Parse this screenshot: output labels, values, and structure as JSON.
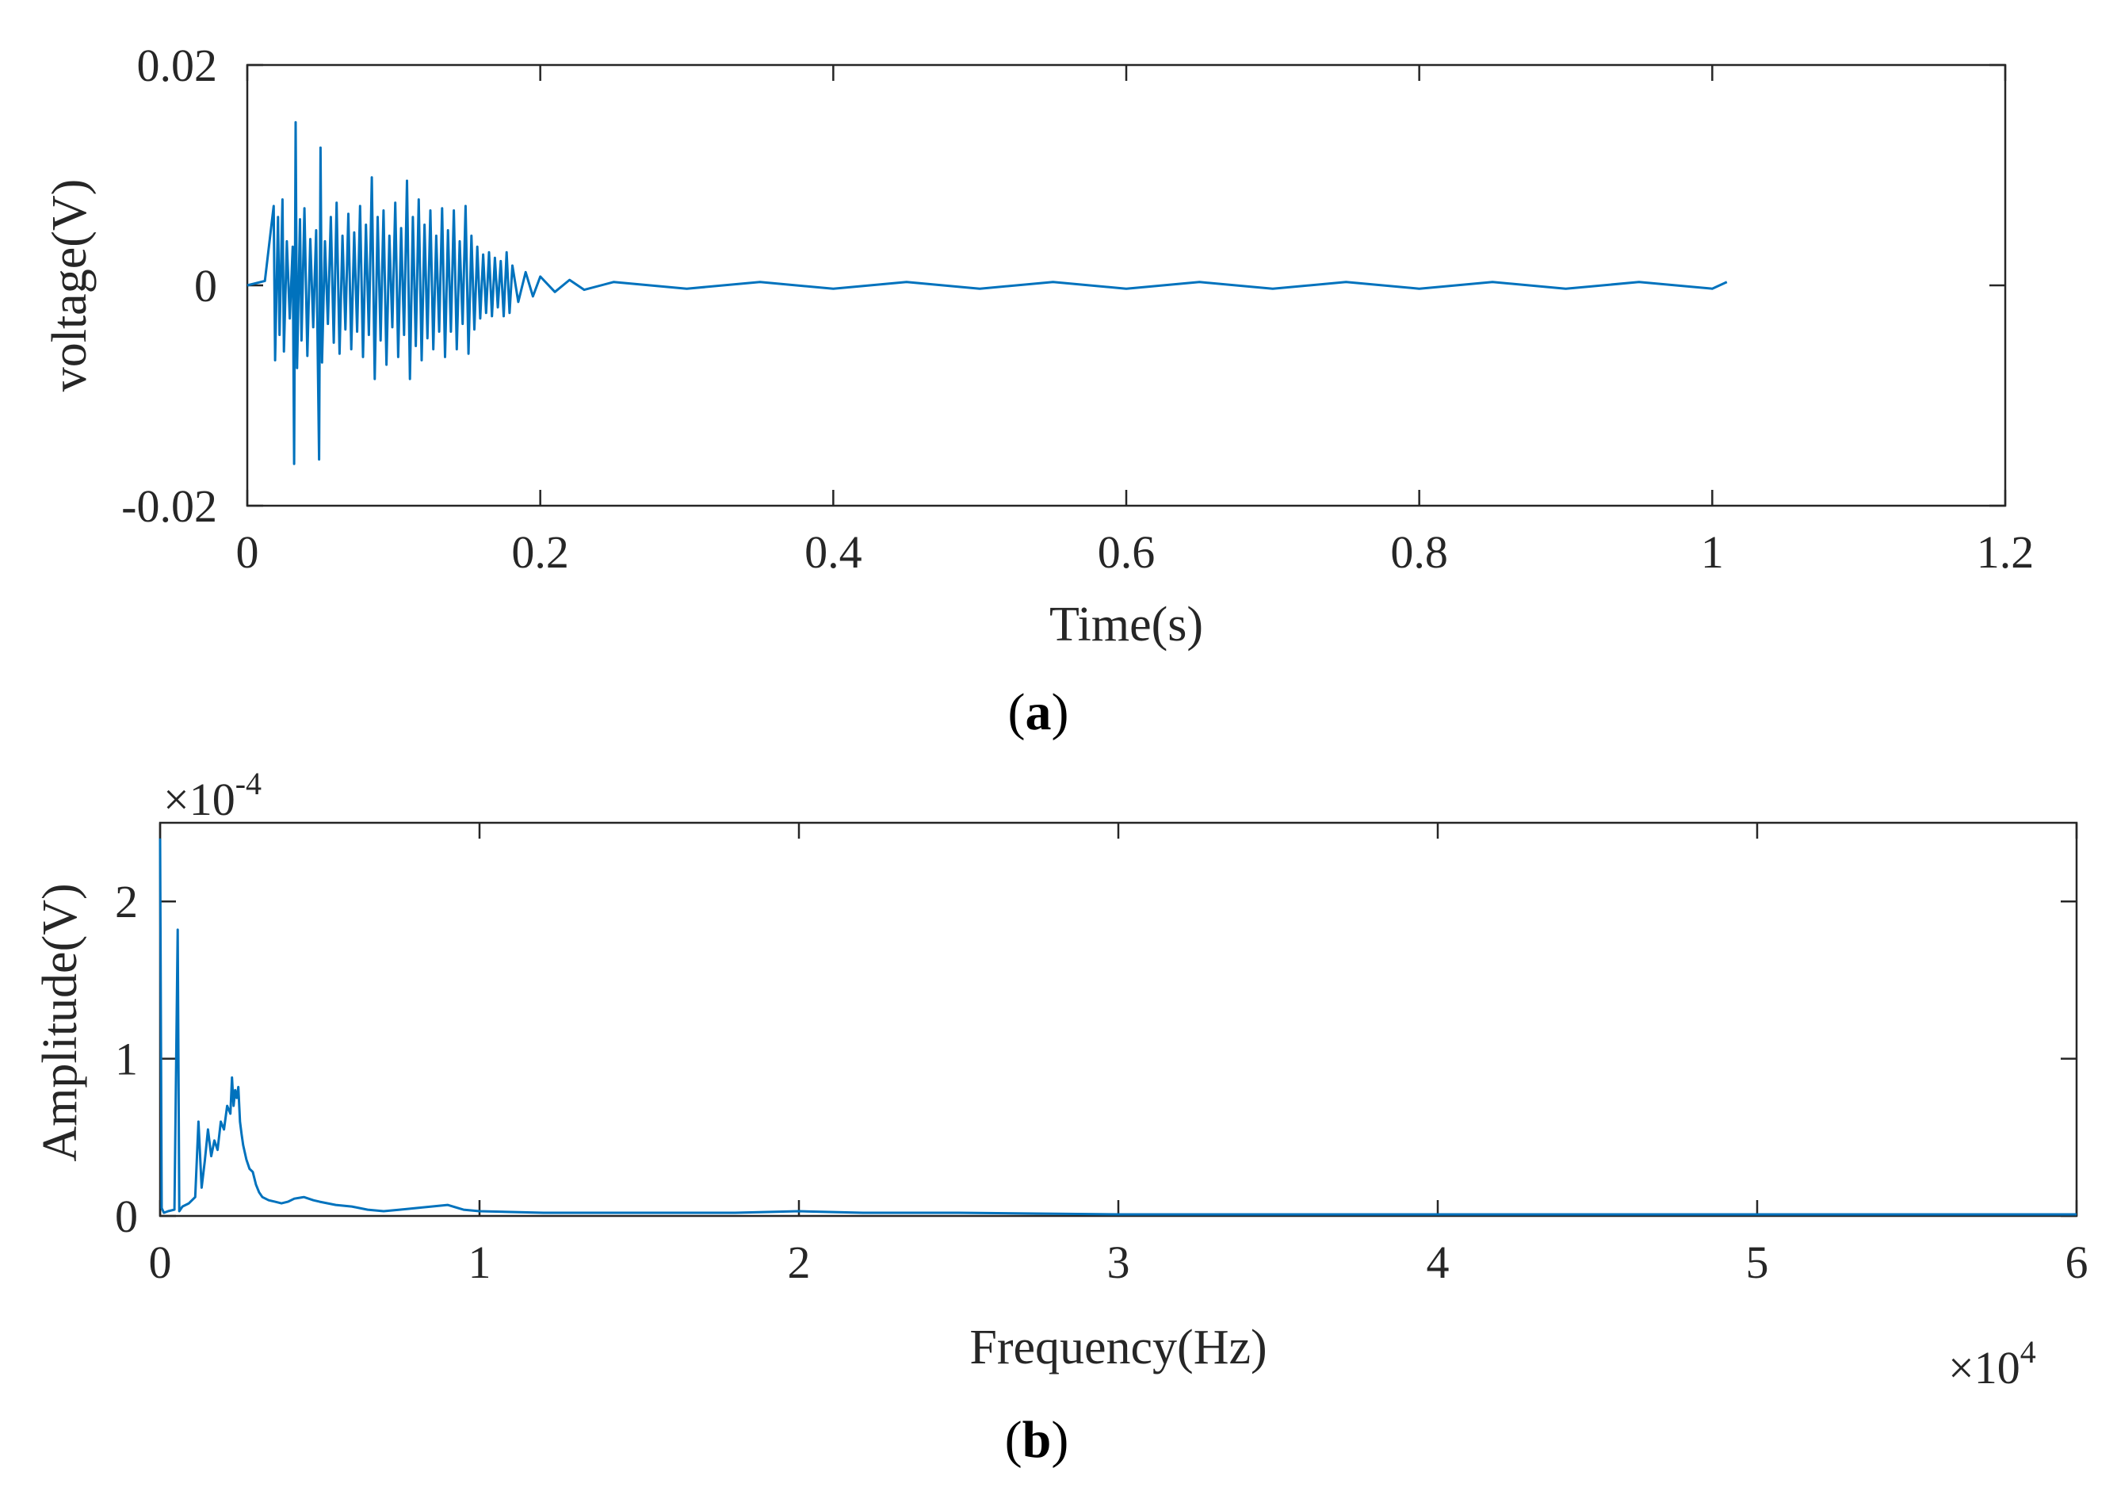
{
  "chart_data": [
    {
      "type": "line",
      "panel_label": "a",
      "xlabel": "Time(s)",
      "ylabel": "voltage(V)",
      "xlim": [
        0,
        1.2
      ],
      "ylim": [
        -0.02,
        0.02
      ],
      "x_ticks": [
        "0",
        "0.2",
        "0.4",
        "0.6",
        "0.8",
        "1",
        "1.2"
      ],
      "x_tick_values": [
        0,
        0.2,
        0.4,
        0.6,
        0.8,
        1.0,
        1.2
      ],
      "y_ticks": [
        "-0.02",
        "0",
        "0.02"
      ],
      "y_tick_values": [
        -0.02,
        0,
        0.02
      ],
      "grid": false,
      "color": "#0072BD",
      "series": [
        {
          "x": [
            0,
            0.012,
            0.018,
            0.019,
            0.021,
            0.022,
            0.024,
            0.025,
            0.027,
            0.029,
            0.031,
            0.032,
            0.033,
            0.034,
            0.036,
            0.037,
            0.039,
            0.041,
            0.043,
            0.045,
            0.047,
            0.049,
            0.05,
            0.051,
            0.053,
            0.055,
            0.057,
            0.059,
            0.061,
            0.063,
            0.065,
            0.067,
            0.069,
            0.071,
            0.073,
            0.075,
            0.077,
            0.079,
            0.081,
            0.083,
            0.085,
            0.087,
            0.089,
            0.091,
            0.093,
            0.095,
            0.097,
            0.099,
            0.101,
            0.103,
            0.105,
            0.107,
            0.109,
            0.111,
            0.113,
            0.115,
            0.117,
            0.119,
            0.121,
            0.123,
            0.125,
            0.127,
            0.129,
            0.131,
            0.133,
            0.135,
            0.137,
            0.139,
            0.141,
            0.143,
            0.145,
            0.147,
            0.149,
            0.151,
            0.153,
            0.155,
            0.157,
            0.159,
            0.161,
            0.163,
            0.165,
            0.167,
            0.169,
            0.171,
            0.173,
            0.175,
            0.177,
            0.179,
            0.181,
            0.185,
            0.19,
            0.195,
            0.2,
            0.21,
            0.22,
            0.23,
            0.25,
            0.3,
            0.35,
            0.4,
            0.45,
            0.5,
            0.55,
            0.6,
            0.65,
            0.7,
            0.75,
            0.8,
            0.85,
            0.9,
            0.95,
            1.0,
            1.01
          ],
          "y": [
            0.0,
            0.0004,
            0.0072,
            -0.0068,
            0.0062,
            -0.0045,
            0.0078,
            -0.006,
            0.004,
            -0.003,
            0.0035,
            -0.0162,
            0.0148,
            -0.0075,
            0.006,
            -0.005,
            0.007,
            -0.0064,
            0.0042,
            -0.0038,
            0.005,
            -0.0158,
            0.0125,
            -0.007,
            0.004,
            -0.0035,
            0.0062,
            -0.0052,
            0.0075,
            -0.0062,
            0.0045,
            -0.004,
            0.0065,
            -0.0058,
            0.0048,
            -0.0042,
            0.0072,
            -0.0065,
            0.0055,
            -0.0045,
            0.0098,
            -0.0085,
            0.0062,
            -0.005,
            0.0068,
            -0.0072,
            0.0045,
            -0.0038,
            0.0075,
            -0.0065,
            0.0052,
            -0.0045,
            0.0095,
            -0.0085,
            0.0062,
            -0.0055,
            0.0078,
            -0.0068,
            0.0055,
            -0.0048,
            0.0068,
            -0.0058,
            0.0045,
            -0.0042,
            0.007,
            -0.0065,
            0.005,
            -0.0042,
            0.0068,
            -0.0058,
            0.004,
            -0.0035,
            0.0072,
            -0.0062,
            0.0045,
            -0.004,
            0.0035,
            -0.003,
            0.0028,
            -0.0025,
            0.003,
            -0.0028,
            0.0025,
            -0.002,
            0.0022,
            -0.0028,
            0.003,
            -0.0025,
            0.0018,
            -0.0015,
            0.0012,
            -0.001,
            0.0008,
            -0.0006,
            0.0005,
            -0.0004,
            0.0003,
            -0.0003,
            0.0003,
            -0.0003,
            0.0003,
            -0.0003,
            0.0003,
            -0.0003,
            0.0003,
            -0.0003,
            0.0003,
            -0.0003,
            0.0003,
            -0.0003,
            0.0003,
            -0.0003,
            0.0003
          ]
        }
      ]
    },
    {
      "type": "line",
      "panel_label": "b",
      "xlabel": "Frequency(Hz)",
      "ylabel": "Amplitude(V)",
      "xlim": [
        0,
        60000
      ],
      "ylim": [
        0,
        0.00025
      ],
      "x_ticks": [
        "0",
        "1",
        "2",
        "3",
        "4",
        "5",
        "6"
      ],
      "x_tick_values": [
        0,
        10000,
        20000,
        30000,
        40000,
        50000,
        60000
      ],
      "x_exponent_base": "×10",
      "x_exponent_power": "4",
      "y_ticks": [
        "0",
        "1",
        "2"
      ],
      "y_tick_values": [
        0,
        0.0001,
        0.0002
      ],
      "y_exponent_base": "×10",
      "y_exponent_power": "-4",
      "grid": false,
      "color": "#0072BD",
      "series": [
        {
          "x": [
            0,
            50,
            120,
            250,
            450,
            550,
            600,
            700,
            900,
            1100,
            1200,
            1300,
            1400,
            1500,
            1600,
            1700,
            1800,
            1900,
            2000,
            2100,
            2200,
            2250,
            2300,
            2350,
            2400,
            2450,
            2500,
            2550,
            2600,
            2700,
            2800,
            2900,
            3000,
            3100,
            3200,
            3400,
            3600,
            3800,
            4000,
            4200,
            4500,
            4800,
            5000,
            5500,
            6000,
            6500,
            7000,
            7500,
            8000,
            8500,
            9000,
            9500,
            10000,
            12000,
            15000,
            18000,
            20000,
            22000,
            25000,
            30000,
            35000,
            40000,
            45000,
            50000,
            55000,
            60000
          ],
          "y": [
            0.00024,
            5e-06,
            2e-06,
            3e-06,
            4e-06,
            0.000182,
            3e-06,
            6e-06,
            8e-06,
            1.2e-05,
            6e-05,
            1.8e-05,
            3.5e-05,
            5.5e-05,
            3.8e-05,
            4.8e-05,
            4.2e-05,
            6e-05,
            5.5e-05,
            7e-05,
            6.5e-05,
            8.8e-05,
            7e-05,
            8e-05,
            7.5e-05,
            8.2e-05,
            6e-05,
            5.2e-05,
            4.5e-05,
            3.6e-05,
            3e-05,
            2.8e-05,
            2e-05,
            1.5e-05,
            1.2e-05,
            1e-05,
            9e-06,
            8e-06,
            9e-06,
            1.1e-05,
            1.2e-05,
            1e-05,
            9e-06,
            7e-06,
            6e-06,
            4e-06,
            3e-06,
            4e-06,
            5e-06,
            6e-06,
            7e-06,
            4e-06,
            3e-06,
            2e-06,
            2e-06,
            2e-06,
            3e-06,
            2e-06,
            2e-06,
            1e-06,
            1e-06,
            1e-06,
            1e-06,
            1e-06,
            1e-06,
            1e-06
          ]
        }
      ]
    }
  ]
}
